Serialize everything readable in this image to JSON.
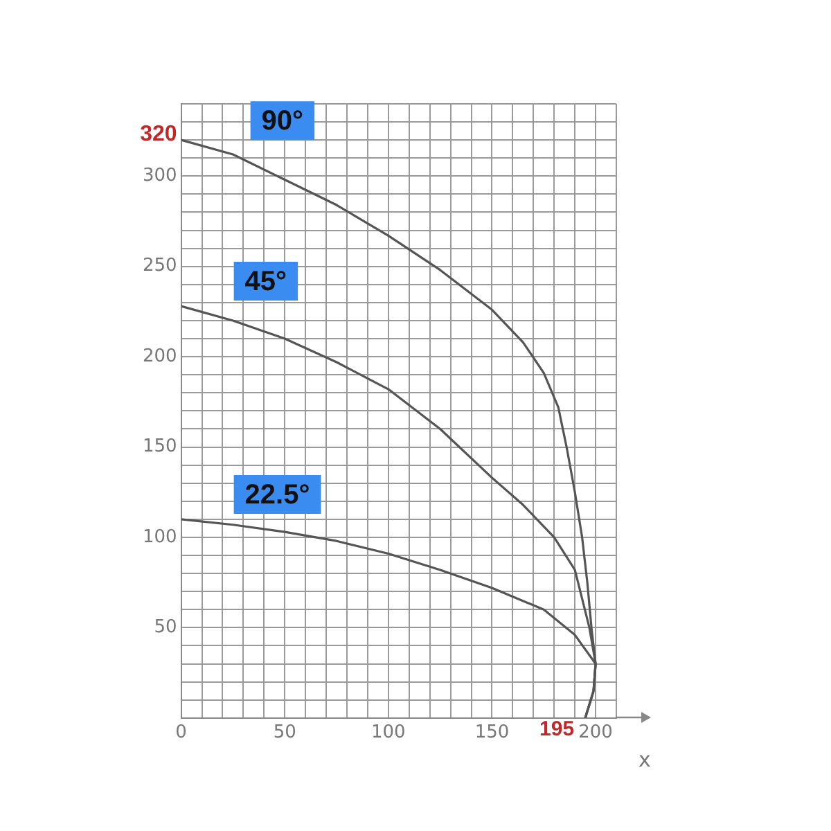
{
  "chart_data": {
    "type": "line",
    "xlabel": "x",
    "series": [
      {
        "name": "90°",
        "color": "#555555",
        "x": [
          0,
          25,
          50,
          75,
          100,
          125,
          150,
          165,
          175,
          182,
          186,
          190,
          193.5,
          196,
          198,
          200,
          199,
          195
        ],
        "values": [
          320,
          312,
          298,
          284,
          267,
          248,
          226,
          208,
          191,
          172,
          150,
          125,
          100,
          75,
          50,
          30,
          15,
          0
        ]
      },
      {
        "name": "45°",
        "color": "#555555",
        "x": [
          0,
          25,
          50,
          75,
          100,
          125,
          150,
          165,
          180,
          190,
          197,
          200,
          199,
          195
        ],
        "values": [
          228,
          220,
          210,
          197,
          182,
          160,
          133,
          118,
          100,
          82,
          50,
          30,
          15,
          0
        ]
      },
      {
        "name": "22.5°",
        "color": "#555555",
        "x": [
          0,
          25,
          50,
          75,
          100,
          125,
          150,
          175,
          190,
          200,
          199,
          195
        ],
        "values": [
          110,
          107,
          103,
          98,
          91,
          82,
          72,
          60,
          46,
          30,
          15,
          0
        ]
      }
    ],
    "xlim": [
      0,
      210
    ],
    "xticks": [
      0,
      {
        "value": 10,
        "label": null
      },
      {
        "value": 20,
        "label": null
      },
      {
        "value": 30,
        "label": null
      },
      {
        "value": 40,
        "label": null
      },
      50,
      {
        "value": 60,
        "label": null
      },
      {
        "value": 70,
        "label": null
      },
      {
        "value": 80,
        "label": null
      },
      {
        "value": 90,
        "label": null
      },
      100,
      {
        "value": 110,
        "label": null
      },
      {
        "value": 120,
        "label": null
      },
      {
        "value": 130,
        "label": null
      },
      {
        "value": 140,
        "label": null
      },
      150,
      {
        "value": 160,
        "label": null
      },
      {
        "value": 170,
        "label": null
      },
      {
        "value": 180,
        "label": null
      },
      {
        "value": 190,
        "label": null
      },
      200,
      {
        "value": 210,
        "label": null
      }
    ],
    "ylim": [
      0,
      340
    ],
    "yticks": [
      {
        "value": 0,
        "label": null
      },
      {
        "value": 10,
        "label": null
      },
      {
        "value": 20,
        "label": null
      },
      {
        "value": 30,
        "label": null
      },
      {
        "value": 40,
        "label": null
      },
      50,
      {
        "value": 60,
        "label": null
      },
      {
        "value": 70,
        "label": null
      },
      {
        "value": 80,
        "label": null
      },
      {
        "value": 90,
        "label": null
      },
      100,
      {
        "value": 110,
        "label": null
      },
      {
        "value": 120,
        "label": null
      },
      {
        "value": 130,
        "label": null
      },
      {
        "value": 140,
        "label": null
      },
      150,
      {
        "value": 160,
        "label": null
      },
      {
        "value": 170,
        "label": null
      },
      {
        "value": 180,
        "label": null
      },
      {
        "value": 190,
        "label": null
      },
      200,
      {
        "value": 210,
        "label": null
      },
      {
        "value": 220,
        "label": null
      },
      {
        "value": 230,
        "label": null
      },
      {
        "value": 240,
        "label": null
      },
      250,
      {
        "value": 260,
        "label": null
      },
      {
        "value": 270,
        "label": null
      },
      {
        "value": 280,
        "label": null
      },
      {
        "value": 290,
        "label": null
      },
      300,
      {
        "value": 310,
        "label": null
      },
      {
        "value": 320,
        "label": null
      },
      {
        "value": 330,
        "label": null
      },
      {
        "value": 340,
        "label": null
      }
    ],
    "annotations": [
      {
        "text": "320",
        "x": 0,
        "y": 320
      },
      {
        "text": "195",
        "x": 195,
        "y": 0
      }
    ],
    "grid": true,
    "legend": false,
    "marker": "none",
    "line_style": "solid"
  }
}
